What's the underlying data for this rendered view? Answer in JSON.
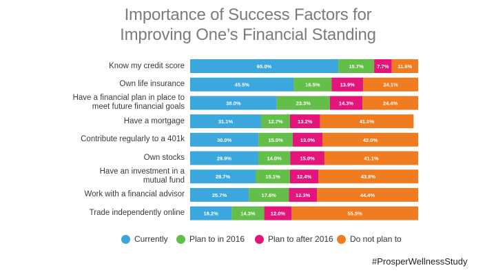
{
  "chart_data": {
    "type": "bar",
    "stacked": true,
    "orientation": "horizontal",
    "title": "Importance of Success Factors for Improving One's Financial Standing",
    "title_lines": [
      "Importance of Success Factors for",
      "Improving One’s Financial Standing"
    ],
    "categories": [
      "Know my credit score",
      "Own life insurance",
      "Have a financial plan in place to meet future financial goals",
      "Have a mortgage",
      "Contribute regularly to a 401k",
      "Own stocks",
      "Have an investment in a mutual fund",
      "Work with a financial advisor",
      "Trade independently online"
    ],
    "category_lines": [
      [
        "Know my credit score"
      ],
      [
        "Own life insurance"
      ],
      [
        "Have a financial plan in place to",
        "meet future financial goals"
      ],
      [
        "Have a mortgage"
      ],
      [
        "Contribute regularly to a 401k"
      ],
      [
        "Own stocks"
      ],
      [
        "Have an investment in a",
        "mutual fund"
      ],
      [
        "Work with a financial advisor"
      ],
      [
        "Trade independently online"
      ]
    ],
    "series": [
      {
        "name": "Currently",
        "color": "#3ba7dc",
        "values": [
          65.0,
          45.5,
          38.0,
          31.1,
          30.0,
          29.9,
          28.7,
          25.7,
          18.2
        ]
      },
      {
        "name": "Plan to in 2016",
        "color": "#63bf4a",
        "values": [
          15.7,
          16.5,
          23.3,
          12.7,
          15.0,
          14.0,
          15.1,
          17.6,
          14.3
        ]
      },
      {
        "name": "Plan to after 2016",
        "color": "#e3157a",
        "values": [
          7.7,
          13.9,
          14.3,
          13.2,
          13.0,
          15.0,
          12.4,
          12.3,
          12.0
        ]
      },
      {
        "name": "Do not plan to",
        "color": "#f07c22",
        "values": [
          11.6,
          24.1,
          24.4,
          41.0,
          42.0,
          41.1,
          43.8,
          44.4,
          55.5
        ]
      }
    ],
    "xlim": [
      0,
      100
    ],
    "legend": "bottom",
    "grid": false
  },
  "footer": {
    "hashtag": "#ProsperWellnessStudy"
  }
}
